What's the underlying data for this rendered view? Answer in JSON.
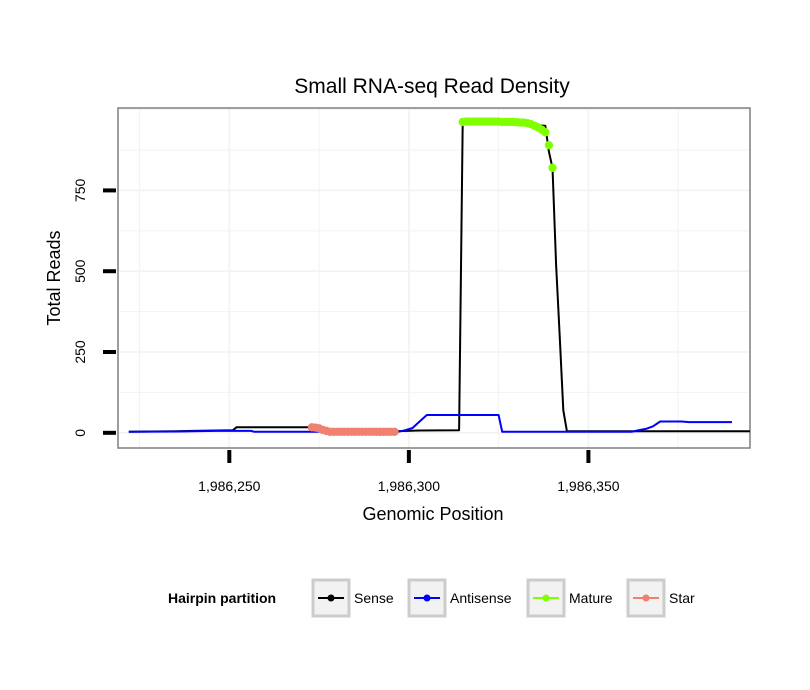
{
  "chart_data": {
    "type": "line",
    "title": "Small RNA-seq Read Density",
    "xlabel": "Genomic Position",
    "ylabel": "Total Reads",
    "xlim": [
      1986219,
      1986395
    ],
    "ylim": [
      -47,
      1005
    ],
    "x_ticks": [
      1986250,
      1986300,
      1986350
    ],
    "x_tick_labels": [
      "1,986,250",
      "1,986,300",
      "1,986,350"
    ],
    "y_ticks": [
      0,
      250,
      500,
      750
    ],
    "y_tick_labels": [
      "0",
      "250",
      "500",
      "750"
    ],
    "grid": true,
    "legend_title": "Hairpin partition",
    "legend_position": "bottom",
    "series": [
      {
        "name": "Sense",
        "color": "#000000",
        "kind": "line",
        "points": [
          [
            1986222,
            3
          ],
          [
            1986235,
            5
          ],
          [
            1986240,
            6
          ],
          [
            1986251,
            8
          ],
          [
            1986252,
            17
          ],
          [
            1986272,
            17
          ],
          [
            1986273,
            8
          ],
          [
            1986278,
            6
          ],
          [
            1986296,
            5
          ],
          [
            1986303,
            7
          ],
          [
            1986314,
            8
          ],
          [
            1986315,
            960
          ],
          [
            1986338,
            950
          ],
          [
            1986339,
            870
          ],
          [
            1986340,
            820
          ],
          [
            1986341,
            520
          ],
          [
            1986342,
            300
          ],
          [
            1986343,
            70
          ],
          [
            1986344,
            5
          ],
          [
            1986360,
            5
          ],
          [
            1986395,
            5
          ]
        ]
      },
      {
        "name": "Antisense",
        "color": "#0000ff",
        "kind": "line",
        "points": [
          [
            1986222,
            3
          ],
          [
            1986236,
            4
          ],
          [
            1986246,
            6
          ],
          [
            1986256,
            6
          ],
          [
            1986257,
            3
          ],
          [
            1986297,
            3
          ],
          [
            1986299,
            8
          ],
          [
            1986301,
            15
          ],
          [
            1986303,
            35
          ],
          [
            1986305,
            55
          ],
          [
            1986314,
            55
          ],
          [
            1986325,
            55
          ],
          [
            1986326,
            3
          ],
          [
            1986343,
            3
          ],
          [
            1986362,
            3
          ],
          [
            1986364,
            8
          ],
          [
            1986366,
            12
          ],
          [
            1986368,
            20
          ],
          [
            1986370,
            35
          ],
          [
            1986376,
            35
          ],
          [
            1986378,
            33
          ],
          [
            1986390,
            33
          ]
        ]
      },
      {
        "name": "Mature",
        "color": "#7fff00",
        "kind": "points",
        "points": [
          [
            1986315,
            962
          ],
          [
            1986316,
            963
          ],
          [
            1986317,
            963
          ],
          [
            1986318,
            963
          ],
          [
            1986319,
            963
          ],
          [
            1986320,
            963
          ],
          [
            1986321,
            963
          ],
          [
            1986322,
            963
          ],
          [
            1986323,
            963
          ],
          [
            1986324,
            963
          ],
          [
            1986325,
            963
          ],
          [
            1986326,
            962
          ],
          [
            1986327,
            962
          ],
          [
            1986328,
            962
          ],
          [
            1986329,
            962
          ],
          [
            1986330,
            961
          ],
          [
            1986331,
            960
          ],
          [
            1986332,
            960
          ],
          [
            1986333,
            958
          ],
          [
            1986334,
            955
          ],
          [
            1986335,
            950
          ],
          [
            1986336,
            945
          ],
          [
            1986337,
            938
          ],
          [
            1986338,
            930
          ],
          [
            1986339,
            890
          ],
          [
            1986340,
            820
          ]
        ]
      },
      {
        "name": "Star",
        "color": "#f08070",
        "kind": "points",
        "points": [
          [
            1986273,
            17
          ],
          [
            1986274,
            16
          ],
          [
            1986275,
            14
          ],
          [
            1986276,
            9
          ],
          [
            1986277,
            6
          ],
          [
            1986278,
            3
          ],
          [
            1986279,
            3
          ],
          [
            1986280,
            3
          ],
          [
            1986281,
            3
          ],
          [
            1986282,
            3
          ],
          [
            1986283,
            3
          ],
          [
            1986284,
            3
          ],
          [
            1986285,
            3
          ],
          [
            1986286,
            3
          ],
          [
            1986287,
            3
          ],
          [
            1986288,
            3
          ],
          [
            1986289,
            3
          ],
          [
            1986290,
            3
          ],
          [
            1986291,
            3
          ],
          [
            1986292,
            3
          ],
          [
            1986293,
            3
          ],
          [
            1986294,
            3
          ],
          [
            1986295,
            3
          ],
          [
            1986296,
            3
          ]
        ]
      }
    ]
  }
}
